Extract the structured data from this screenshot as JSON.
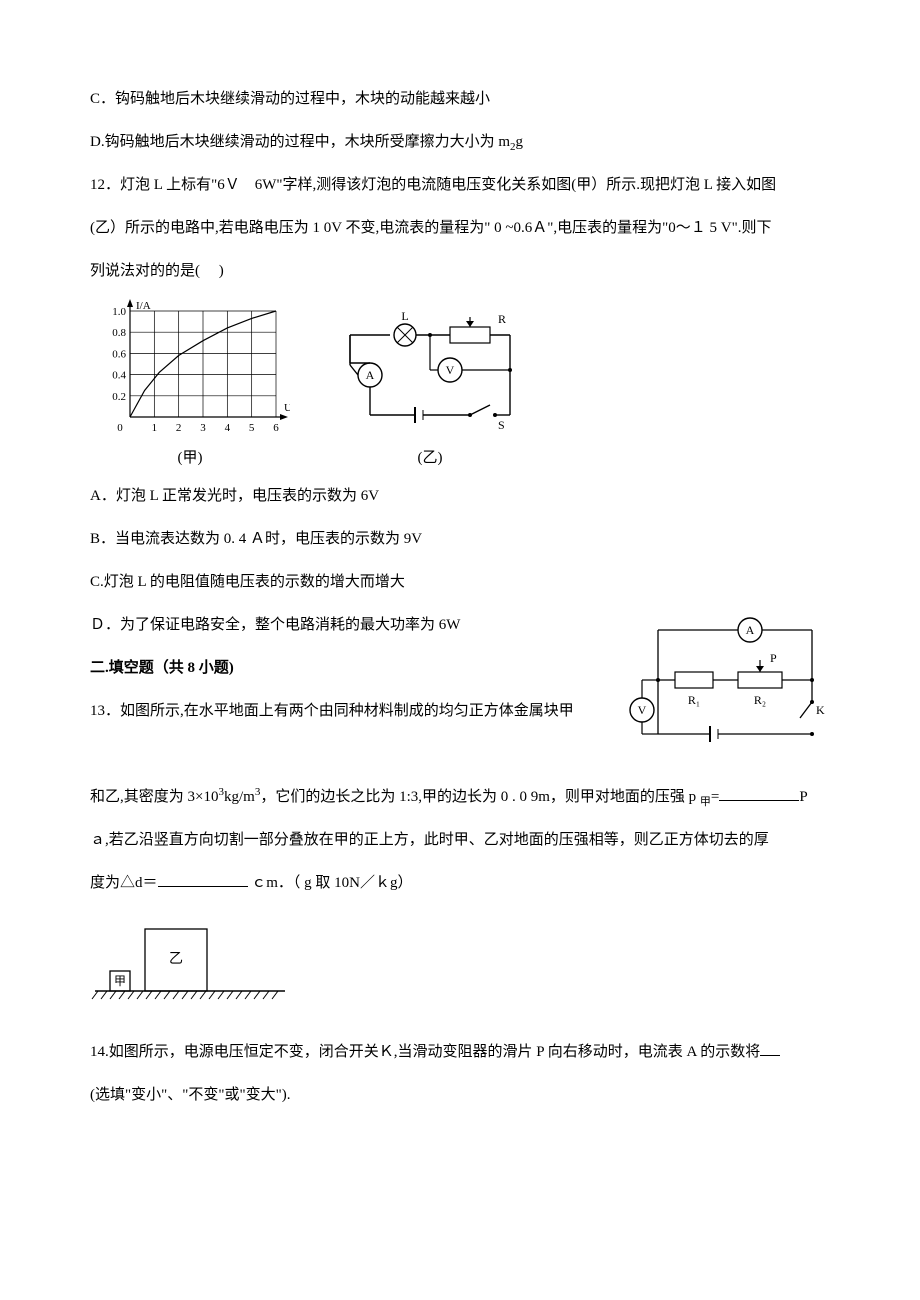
{
  "q11": {
    "optC": "C．钩码触地后木块继续滑动的过程中，木块的动能越来越小",
    "optD_pre": "D.钩码触地后木块继续滑动的过程中，木块所受摩擦力大小为 m",
    "optD_sub": "2",
    "optD_after": "g"
  },
  "q12": {
    "stem1": "12．灯泡 L 上标有\"6Ｖ　6W\"字样,测得该灯泡的电流随电压变化关系如图(甲）所示.现把灯泡 L 接入如图",
    "stem2": "(乙）所示的电路中,若电路电压为 1 0V 不变,电流表的量程为\" 0 ~0.6Ａ\",电压表的量程为\"0～１ 5 V\".则下",
    "stem3": "列说法对的的是(　 )",
    "optA": "A．灯泡 L 正常发光时，电压表的示数为 6V",
    "optB": "B．当电流表达数为 0. 4 Ａ时，电压表的示数为 9V",
    "optC": "C.灯泡 L 的电阻值随电压表的示数的增大而增大",
    "optD": "Ｄ．为了保证电路安全，整个电路消耗的最大功率为 6W",
    "graph": {
      "type": "line-on-grid",
      "x_label": "U/V",
      "y_label": "I/A",
      "x_range": [
        0,
        6
      ],
      "y_range": [
        0,
        1.0
      ],
      "x_ticks": [
        "1",
        "2",
        "3",
        "4",
        "5",
        "6"
      ],
      "y_ticks": [
        "0.2",
        "0.4",
        "0.6",
        "0.8",
        "1.0"
      ],
      "origin_label": "0",
      "grid_color": "#000000",
      "line_color": "#000000",
      "line_width": 1.2,
      "background_color": "#ffffff",
      "caption": "(甲)",
      "curve_points_xy": [
        [
          0,
          0
        ],
        [
          0.6,
          0.25
        ],
        [
          1.2,
          0.42
        ],
        [
          2,
          0.58
        ],
        [
          3,
          0.72
        ],
        [
          4,
          0.84
        ],
        [
          5,
          0.93
        ],
        [
          6,
          1.0
        ]
      ]
    },
    "circuit": {
      "caption": "(乙)",
      "lamp_label": "L",
      "rheostat_label": "R",
      "ammeter_label": "A",
      "voltmeter_label": "V",
      "switch_label": "S",
      "line_color": "#000000",
      "background_color": "#ffffff"
    }
  },
  "section2": {
    "title": "二.填空题（共 8 小题)"
  },
  "q13": {
    "stem1": "13．如图所示,在水平地面上有两个由同种材料制成的均匀正方体金属块甲",
    "stem2_pre": "和乙,其密度为 3×10",
    "stem2_sup": "3",
    "stem2_mid": "kg/m",
    "stem2_sup2": "3",
    "stem2_after": "，它们的边长之比为 1:3,甲的边长为 0 . 0 9m，则甲对地面的压强 p ",
    "stem2_sub": "甲",
    "stem2_tail": "=",
    "unit1": "P",
    "stem3_pre": "ａ,若乙沿竖直方向切割一部分叠放在甲的正上方，此时甲、乙对地面的压强相等，则乙正方体切去的厚",
    "stem4_pre": "度为△d＝",
    "stem4_unit": " ｃm．（ g 取 10N／ｋg）",
    "blocks": {
      "labels": {
        "small": "甲",
        "large": "乙"
      },
      "line_color": "#000000",
      "hatch_color": "#000000"
    }
  },
  "q14": {
    "stem1_pre": "14.如图所示，电源电压恒定不变，闭合开关Ｋ,当滑动变阻器的滑片 P 向右移动时，电流表 A 的示数将",
    "stem2": "(选填\"变小\"、\"不变\"或\"变大\").",
    "circuit": {
      "r1_label": "R₁",
      "r2_label": "R₂",
      "slider_label": "P",
      "ammeter_label": "A",
      "voltmeter_label": "V",
      "switch_label": "K",
      "line_color": "#000000"
    }
  }
}
